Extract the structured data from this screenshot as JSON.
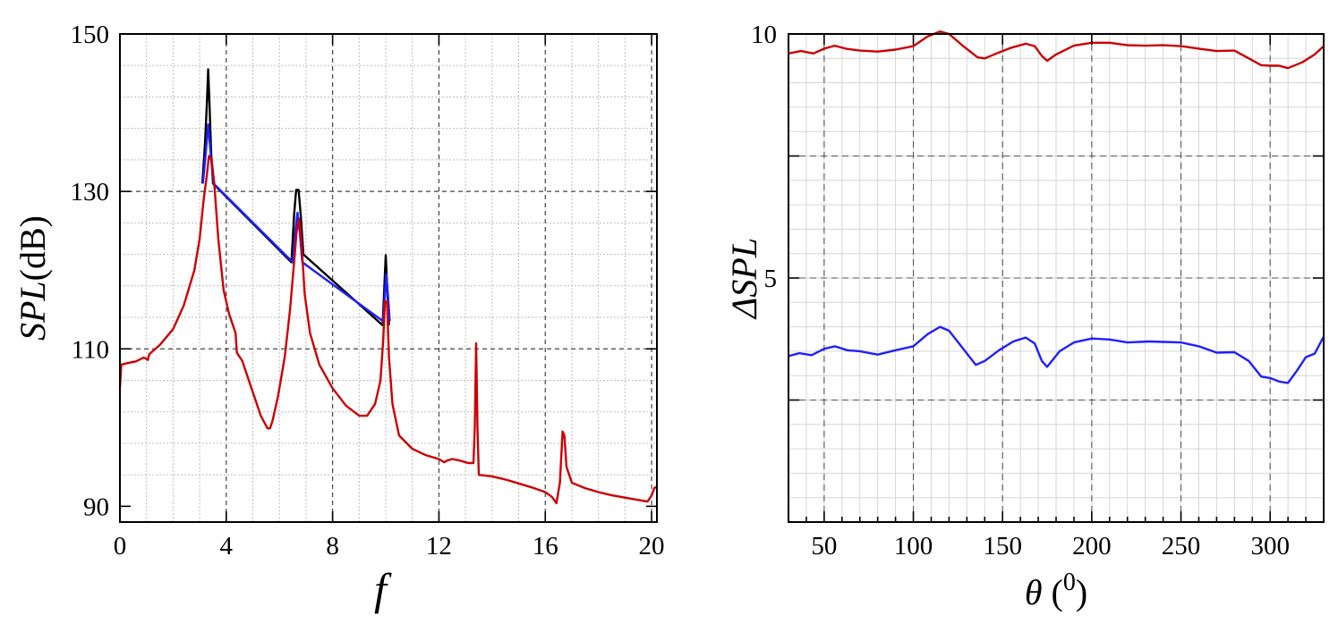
{
  "chart_data": [
    {
      "type": "line",
      "title": "",
      "xlabel": "f",
      "ylabel": "SPL",
      "ylabel_unit": "(dB)",
      "xlim": [
        0,
        20.2
      ],
      "ylim": [
        88,
        150
      ],
      "xticks": [
        "0",
        "4",
        "8",
        "12",
        "16",
        "20"
      ],
      "yticks": [
        "90",
        "110",
        "130",
        "150"
      ],
      "grid": true,
      "series": [
        {
          "name": "black",
          "color": "#000000",
          "points": [
            [
              3.1,
              131
            ],
            [
              3.2,
              136
            ],
            [
              3.27,
              141
            ],
            [
              3.32,
              145.5
            ],
            [
              3.37,
              141
            ],
            [
              3.43,
              135
            ],
            [
              3.5,
              131
            ],
            [
              6.45,
              121
            ],
            [
              6.55,
              127
            ],
            [
              6.63,
              130.2
            ],
            [
              6.72,
              130.2
            ],
            [
              6.8,
              127
            ],
            [
              6.9,
              122
            ],
            [
              9.88,
              113
            ],
            [
              9.95,
              118
            ],
            [
              10.0,
              121.9
            ],
            [
              10.05,
              118
            ],
            [
              10.12,
              113
            ]
          ]
        },
        {
          "name": "blue",
          "color": "#1f1fff",
          "points": [
            [
              3.12,
              131
            ],
            [
              3.22,
              134.5
            ],
            [
              3.32,
              138.5
            ],
            [
              3.42,
              134.5
            ],
            [
              3.52,
              131
            ],
            [
              6.5,
              121
            ],
            [
              6.6,
              125
            ],
            [
              6.68,
              127.3
            ],
            [
              6.76,
              125
            ],
            [
              6.86,
              121
            ],
            [
              9.9,
              113.5
            ],
            [
              9.97,
              117
            ],
            [
              10.02,
              119.5
            ],
            [
              10.08,
              117
            ],
            [
              10.15,
              113.5
            ]
          ]
        },
        {
          "name": "red",
          "color": "#cc0000",
          "points": [
            [
              0,
              105
            ],
            [
              0.05,
              108
            ],
            [
              0.3,
              108.2
            ],
            [
              0.6,
              108.4
            ],
            [
              0.9,
              108.9
            ],
            [
              1.05,
              108.6
            ],
            [
              1.1,
              109.3
            ],
            [
              1.5,
              110.5
            ],
            [
              2.0,
              112.5
            ],
            [
              2.4,
              115.5
            ],
            [
              2.8,
              120
            ],
            [
              3.0,
              124
            ],
            [
              3.15,
              129
            ],
            [
              3.25,
              131.5
            ],
            [
              3.35,
              134.5
            ],
            [
              3.45,
              134
            ],
            [
              3.55,
              131
            ],
            [
              3.7,
              124
            ],
            [
              3.9,
              117.5
            ],
            [
              4.1,
              114.5
            ],
            [
              4.35,
              112
            ],
            [
              4.4,
              109.5
            ],
            [
              4.6,
              108.5
            ],
            [
              5.0,
              104.5
            ],
            [
              5.3,
              101.5
            ],
            [
              5.55,
              99.9
            ],
            [
              5.65,
              99.9
            ],
            [
              5.75,
              101
            ],
            [
              5.95,
              104
            ],
            [
              6.2,
              109
            ],
            [
              6.4,
              115
            ],
            [
              6.55,
              121
            ],
            [
              6.65,
              125
            ],
            [
              6.75,
              126.5
            ],
            [
              6.82,
              124
            ],
            [
              6.95,
              117
            ],
            [
              7.15,
              112
            ],
            [
              7.5,
              108
            ],
            [
              8.0,
              105
            ],
            [
              8.5,
              102.8
            ],
            [
              9.0,
              101.5
            ],
            [
              9.3,
              101.5
            ],
            [
              9.6,
              103
            ],
            [
              9.8,
              106
            ],
            [
              9.9,
              111
            ],
            [
              9.97,
              116
            ],
            [
              10.05,
              116
            ],
            [
              10.12,
              109
            ],
            [
              10.25,
              103
            ],
            [
              10.5,
              99
            ],
            [
              11.0,
              97.3
            ],
            [
              11.5,
              96.5
            ],
            [
              12.0,
              96
            ],
            [
              12.2,
              95.6
            ],
            [
              12.3,
              95.8
            ],
            [
              12.5,
              96
            ],
            [
              12.8,
              95.8
            ],
            [
              13.1,
              95.5
            ],
            [
              13.3,
              95.5
            ],
            [
              13.35,
              100
            ],
            [
              13.4,
              110.7
            ],
            [
              13.45,
              100
            ],
            [
              13.5,
              94
            ],
            [
              14.0,
              93.8
            ],
            [
              14.5,
              93.4
            ],
            [
              15.0,
              92.9
            ],
            [
              15.5,
              92.4
            ],
            [
              16.0,
              91.8
            ],
            [
              16.25,
              91.2
            ],
            [
              16.42,
              90.4
            ],
            [
              16.55,
              93
            ],
            [
              16.65,
              99.5
            ],
            [
              16.72,
              99
            ],
            [
              16.8,
              95
            ],
            [
              17.0,
              93
            ],
            [
              17.5,
              92.3
            ],
            [
              18.0,
              91.8
            ],
            [
              18.5,
              91.4
            ],
            [
              19.0,
              91.1
            ],
            [
              19.5,
              90.8
            ],
            [
              19.85,
              90.6
            ],
            [
              20.0,
              91.4
            ],
            [
              20.1,
              92.3
            ],
            [
              20.2,
              92.5
            ]
          ]
        }
      ]
    },
    {
      "type": "line",
      "title": "",
      "xlabel": "θ",
      "xlabel_unit_open": " (",
      "xlabel_unit_sup": "0",
      "xlabel_unit_close": ")",
      "ylabel": "ΔSPL",
      "xlim": [
        30,
        330
      ],
      "ylim": [
        0,
        10
      ],
      "xticks": [
        "50",
        "100",
        "150",
        "200",
        "250",
        "300"
      ],
      "yticks": [
        "5",
        "10"
      ],
      "grid": true,
      "series": [
        {
          "name": "red",
          "color": "#cc0000",
          "points": [
            [
              30,
              9.6
            ],
            [
              37,
              9.65
            ],
            [
              44,
              9.6
            ],
            [
              50,
              9.7
            ],
            [
              56,
              9.76
            ],
            [
              62,
              9.7
            ],
            [
              70,
              9.66
            ],
            [
              80,
              9.64
            ],
            [
              90,
              9.68
            ],
            [
              100,
              9.75
            ],
            [
              108,
              9.95
            ],
            [
              115,
              10.05
            ],
            [
              120,
              10.0
            ],
            [
              128,
              9.75
            ],
            [
              136,
              9.52
            ],
            [
              140,
              9.5
            ],
            [
              148,
              9.62
            ],
            [
              155,
              9.72
            ],
            [
              163,
              9.8
            ],
            [
              168,
              9.75
            ],
            [
              172,
              9.55
            ],
            [
              175,
              9.45
            ],
            [
              180,
              9.58
            ],
            [
              190,
              9.76
            ],
            [
              200,
              9.82
            ],
            [
              210,
              9.82
            ],
            [
              220,
              9.77
            ],
            [
              230,
              9.76
            ],
            [
              240,
              9.77
            ],
            [
              250,
              9.75
            ],
            [
              260,
              9.7
            ],
            [
              270,
              9.65
            ],
            [
              280,
              9.66
            ],
            [
              288,
              9.5
            ],
            [
              295,
              9.36
            ],
            [
              300,
              9.35
            ],
            [
              305,
              9.35
            ],
            [
              310,
              9.3
            ],
            [
              318,
              9.42
            ],
            [
              325,
              9.58
            ],
            [
              330,
              9.75
            ]
          ]
        },
        {
          "name": "blue",
          "color": "#1f1fff",
          "points": [
            [
              30,
              3.4
            ],
            [
              36,
              3.46
            ],
            [
              43,
              3.42
            ],
            [
              50,
              3.55
            ],
            [
              56,
              3.6
            ],
            [
              63,
              3.52
            ],
            [
              70,
              3.5
            ],
            [
              80,
              3.43
            ],
            [
              90,
              3.52
            ],
            [
              100,
              3.6
            ],
            [
              108,
              3.85
            ],
            [
              115,
              4.0
            ],
            [
              120,
              3.92
            ],
            [
              128,
              3.55
            ],
            [
              135,
              3.22
            ],
            [
              140,
              3.3
            ],
            [
              148,
              3.52
            ],
            [
              156,
              3.7
            ],
            [
              163,
              3.78
            ],
            [
              168,
              3.66
            ],
            [
              172,
              3.3
            ],
            [
              175,
              3.18
            ],
            [
              182,
              3.5
            ],
            [
              190,
              3.68
            ],
            [
              200,
              3.76
            ],
            [
              210,
              3.74
            ],
            [
              220,
              3.68
            ],
            [
              232,
              3.7
            ],
            [
              240,
              3.69
            ],
            [
              250,
              3.68
            ],
            [
              260,
              3.6
            ],
            [
              270,
              3.47
            ],
            [
              280,
              3.48
            ],
            [
              288,
              3.3
            ],
            [
              295,
              2.98
            ],
            [
              300,
              2.95
            ],
            [
              305,
              2.88
            ],
            [
              310,
              2.85
            ],
            [
              315,
              3.1
            ],
            [
              320,
              3.38
            ],
            [
              325,
              3.45
            ],
            [
              330,
              3.8
            ]
          ]
        }
      ]
    }
  ]
}
